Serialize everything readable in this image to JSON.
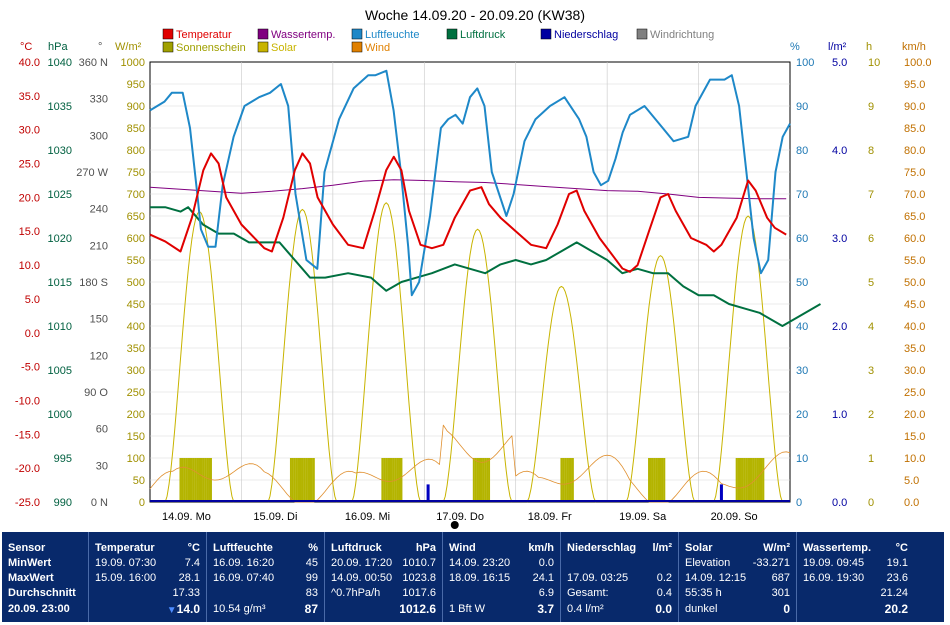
{
  "chart_data": {
    "type": "line",
    "title": "Woche 14.09.20 - 20.09.20 (KW38)",
    "legend": [
      {
        "name": "Temperatur",
        "color": "#e00000"
      },
      {
        "name": "Wassertemp.",
        "color": "#800080"
      },
      {
        "name": "Luftfeuchte",
        "color": "#1e88c8"
      },
      {
        "name": "Luftdruck",
        "color": "#007040"
      },
      {
        "name": "Niederschlag",
        "color": "#0000a0"
      },
      {
        "name": "Windrichtung",
        "color": "#808080"
      },
      {
        "name": "Sonnenschein",
        "color": "#a0a000"
      },
      {
        "name": "Solar",
        "color": "#c8b400"
      },
      {
        "name": "Wind",
        "color": "#e08000"
      }
    ],
    "axes": {
      "temp": {
        "unit": "°C",
        "ticks": [
          "40.0",
          "35.0",
          "30.0",
          "25.0",
          "20.0",
          "15.0",
          "10.0",
          "5.0",
          "0.0",
          "-5.0",
          "-10.0",
          "-15.0",
          "-20.0",
          "-25.0"
        ],
        "color": "#c00000"
      },
      "hpa": {
        "unit": "hPa",
        "ticks": [
          "1040",
          "1035",
          "1030",
          "1025",
          "1020",
          "1015",
          "1010",
          "1005",
          "1000",
          "995",
          "990"
        ],
        "color": "#006040"
      },
      "dir": {
        "unit": "°",
        "ticks": [
          "360 N",
          "330",
          "300",
          "270 W",
          "240",
          "210",
          "180 S",
          "150",
          "120",
          "90 O",
          "60",
          "30",
          "0 N"
        ],
        "color": "#505050"
      },
      "wm2": {
        "unit": "W/m²",
        "ticks": [
          "1000",
          "950",
          "900",
          "850",
          "800",
          "750",
          "700",
          "650",
          "600",
          "550",
          "500",
          "450",
          "400",
          "350",
          "300",
          "250",
          "200",
          "150",
          "100",
          "50",
          "0"
        ],
        "color": "#a09000"
      },
      "pct": {
        "unit": "%",
        "ticks": [
          "100",
          "90",
          "80",
          "70",
          "60",
          "50",
          "40",
          "30",
          "20",
          "10",
          "0"
        ],
        "color": "#1e78b4"
      },
      "lm2": {
        "unit": "l/m²",
        "ticks": [
          "5.0",
          "4.0",
          "3.0",
          "2.0",
          "1.0",
          "0.0"
        ],
        "color": "#0000a0"
      },
      "h": {
        "unit": "h",
        "ticks": [
          "10",
          "9",
          "8",
          "7",
          "6",
          "5",
          "4",
          "3",
          "2",
          "1",
          "0"
        ],
        "color": "#a09000"
      },
      "kmh": {
        "unit": "km/h",
        "ticks": [
          "100.0",
          "95.0",
          "90.0",
          "85.0",
          "80.0",
          "75.0",
          "70.0",
          "65.0",
          "60.0",
          "55.0",
          "50.0",
          "45.0",
          "40.0",
          "35.0",
          "30.0",
          "25.0",
          "20.0",
          "15.0",
          "10.0",
          "5.0",
          "0.0"
        ],
        "color": "#c07000"
      }
    },
    "x_ticks": [
      "14.09.  Mo",
      "15.09.  Di",
      "16.09.  Mi",
      "17.09.  Do",
      "18.09.  Fr",
      "19.09.  Sa",
      "20.09.  So"
    ],
    "series": {
      "temperatur": [
        [
          0,
          14.5
        ],
        [
          4,
          13.5
        ],
        [
          8,
          12.0
        ],
        [
          11,
          17
        ],
        [
          14,
          24
        ],
        [
          16,
          26.5
        ],
        [
          18,
          25
        ],
        [
          20,
          20
        ],
        [
          24,
          16
        ],
        [
          30,
          12.5
        ],
        [
          32,
          12.0
        ],
        [
          35,
          17
        ],
        [
          38,
          24
        ],
        [
          40,
          26.5
        ],
        [
          42,
          25
        ],
        [
          44,
          20
        ],
        [
          48,
          16
        ],
        [
          52,
          13
        ],
        [
          56,
          12.5
        ],
        [
          59,
          18
        ],
        [
          62,
          24
        ],
        [
          64,
          26
        ],
        [
          66,
          24
        ],
        [
          68,
          18
        ],
        [
          71,
          13
        ],
        [
          74,
          12.5
        ],
        [
          77,
          13
        ],
        [
          80,
          17
        ],
        [
          84,
          21
        ],
        [
          87,
          21.5
        ],
        [
          89,
          19
        ],
        [
          92,
          17
        ],
        [
          96,
          15
        ],
        [
          100,
          13
        ],
        [
          104,
          12.5
        ],
        [
          107,
          16
        ],
        [
          110,
          20.5
        ],
        [
          112,
          21
        ],
        [
          114,
          18
        ],
        [
          118,
          14
        ],
        [
          122,
          11
        ],
        [
          124,
          9.5
        ],
        [
          126,
          9
        ],
        [
          128,
          10
        ],
        [
          131,
          15
        ],
        [
          134,
          20
        ],
        [
          136,
          20.5
        ],
        [
          138,
          18
        ],
        [
          142,
          14
        ],
        [
          146,
          13
        ],
        [
          148,
          12
        ],
        [
          150,
          13
        ],
        [
          154,
          17
        ],
        [
          157,
          22.5
        ],
        [
          159,
          21
        ],
        [
          162,
          17
        ],
        [
          164,
          15.5
        ],
        [
          167,
          14.5
        ]
      ],
      "wassertemp": [
        [
          0,
          21.5
        ],
        [
          8,
          21.2
        ],
        [
          16,
          20.9
        ],
        [
          24,
          20.6
        ],
        [
          32,
          20.9
        ],
        [
          40,
          21.3
        ],
        [
          48,
          21.8
        ],
        [
          56,
          22.4
        ],
        [
          64,
          22.6
        ],
        [
          72,
          22.5
        ],
        [
          80,
          22.3
        ],
        [
          88,
          22.2
        ],
        [
          96,
          21.9
        ],
        [
          104,
          21.6
        ],
        [
          112,
          21.3
        ],
        [
          120,
          21.0
        ],
        [
          128,
          20.9
        ],
        [
          136,
          20.5
        ],
        [
          144,
          20.0
        ],
        [
          152,
          19.9
        ],
        [
          160,
          19.8
        ],
        [
          167,
          19.8
        ]
      ],
      "luftfeuchte": [
        [
          0,
          89
        ],
        [
          4,
          91
        ],
        [
          6,
          93
        ],
        [
          9,
          93
        ],
        [
          11,
          85
        ],
        [
          13,
          70
        ],
        [
          14,
          62
        ],
        [
          16,
          58
        ],
        [
          18,
          58
        ],
        [
          20,
          72
        ],
        [
          23,
          83
        ],
        [
          26,
          90
        ],
        [
          30,
          92
        ],
        [
          33,
          93
        ],
        [
          36,
          95
        ],
        [
          38,
          90
        ],
        [
          40,
          70
        ],
        [
          43,
          55
        ],
        [
          46,
          53
        ],
        [
          48,
          75
        ],
        [
          52,
          87
        ],
        [
          56,
          94
        ],
        [
          60,
          97
        ],
        [
          62,
          97
        ],
        [
          65,
          98
        ],
        [
          67,
          89
        ],
        [
          69,
          75
        ],
        [
          71,
          58
        ],
        [
          72,
          47
        ],
        [
          74,
          50
        ],
        [
          77,
          65
        ],
        [
          80,
          85
        ],
        [
          82,
          87
        ],
        [
          84,
          88
        ],
        [
          86,
          86
        ],
        [
          88,
          92
        ],
        [
          90,
          94
        ],
        [
          92,
          90
        ],
        [
          94,
          75
        ],
        [
          96,
          70
        ],
        [
          98,
          65
        ],
        [
          100,
          70
        ],
        [
          103,
          82
        ],
        [
          106,
          87
        ],
        [
          110,
          90
        ],
        [
          114,
          92
        ],
        [
          118,
          87
        ],
        [
          120,
          83
        ],
        [
          122,
          75
        ],
        [
          124,
          72
        ],
        [
          126,
          73
        ],
        [
          128,
          78
        ],
        [
          130,
          84
        ],
        [
          132,
          88
        ],
        [
          136,
          90
        ],
        [
          140,
          86
        ],
        [
          144,
          82
        ],
        [
          148,
          83
        ],
        [
          150,
          90
        ],
        [
          154,
          96
        ],
        [
          158,
          96
        ],
        [
          160,
          97
        ],
        [
          162,
          90
        ],
        [
          164,
          75
        ],
        [
          166,
          60
        ],
        [
          168,
          52
        ],
        [
          170,
          55
        ],
        [
          172,
          75
        ],
        [
          174,
          83
        ],
        [
          176,
          86
        ]
      ],
      "luftdruck": [
        [
          0,
          1023.5
        ],
        [
          4,
          1023.5
        ],
        [
          8,
          1023.0
        ],
        [
          10,
          1023.5
        ],
        [
          14,
          1021.5
        ],
        [
          18,
          1020.5
        ],
        [
          22,
          1020.5
        ],
        [
          26,
          1019.5
        ],
        [
          30,
          1019.5
        ],
        [
          34,
          1019.5
        ],
        [
          36,
          1018.5
        ],
        [
          40,
          1016.5
        ],
        [
          42,
          1015.5
        ],
        [
          46,
          1015.5
        ],
        [
          52,
          1016.0
        ],
        [
          58,
          1015.5
        ],
        [
          62,
          1014.0
        ],
        [
          66,
          1015.0
        ],
        [
          70,
          1015.5
        ],
        [
          74,
          1016.0
        ],
        [
          80,
          1017.0
        ],
        [
          84,
          1016.5
        ],
        [
          88,
          1016.0
        ],
        [
          92,
          1017.0
        ],
        [
          96,
          1017.5
        ],
        [
          100,
          1017.0
        ],
        [
          104,
          1017.5
        ],
        [
          108,
          1018.5
        ],
        [
          112,
          1019.5
        ],
        [
          116,
          1018.5
        ],
        [
          120,
          1017.5
        ],
        [
          124,
          1016.0
        ],
        [
          128,
          1016.5
        ],
        [
          132,
          1016.0
        ],
        [
          136,
          1016.0
        ],
        [
          140,
          1014.5
        ],
        [
          144,
          1013.5
        ],
        [
          148,
          1013.5
        ],
        [
          152,
          1012.5
        ],
        [
          156,
          1012.0
        ],
        [
          160,
          1011.5
        ],
        [
          164,
          1010.5
        ],
        [
          166,
          1010.0
        ],
        [
          170,
          1011.0
        ],
        [
          176,
          1012.5
        ]
      ],
      "solar_peaks": [
        [
          13,
          660
        ],
        [
          40,
          665
        ],
        [
          62,
          680
        ],
        [
          86,
          620
        ],
        [
          108,
          490
        ],
        [
          134,
          560
        ],
        [
          157,
          650
        ]
      ],
      "sun_days": [
        [
          8,
          16
        ],
        [
          37,
          43
        ],
        [
          61,
          66
        ],
        [
          85,
          89
        ],
        [
          108,
          111
        ],
        [
          131,
          135
        ],
        [
          154,
          161
        ]
      ],
      "rain": [
        [
          73,
          0.2
        ],
        [
          150,
          0.2
        ]
      ]
    }
  },
  "panel": {
    "sensor": {
      "header": "Sensor",
      "rows": [
        "MinWert",
        "MaxWert",
        "Durchschnitt",
        "20.09. 23:00"
      ]
    },
    "temperatur": {
      "header": "Temperatur",
      "unit": "°C",
      "min": {
        "time": "19.09.  07:30",
        "value": "7.4"
      },
      "max": {
        "time": "15.09.  16:00",
        "value": "28.1"
      },
      "avg": "17.33",
      "now": "14.0"
    },
    "luftfeuchte": {
      "header": "Luftfeuchte",
      "unit": "%",
      "min": {
        "time": "16.09.  16:20",
        "value": "45"
      },
      "max": {
        "time": "16.09.  07:40",
        "value": "99"
      },
      "avg": "83",
      "abs": "10.54 g/m³",
      "now": "87"
    },
    "luftdruck": {
      "header": "Luftdruck",
      "unit": "hPa",
      "min": {
        "time": "20.09.  17:20",
        "value": "1010.7"
      },
      "max": {
        "time": "14.09.  00:50",
        "value": "1023.8"
      },
      "trend": "^0.7hPa/h",
      "avg": "1017.6",
      "now": "1012.6"
    },
    "wind": {
      "header": "Wind",
      "unit": "km/h",
      "min": {
        "time": "14.09.  23:20",
        "value": "0.0"
      },
      "max": {
        "time": "18.09.  16:15",
        "value": "24.1"
      },
      "avg": "6.9",
      "bft": "1 Bft W",
      "now": "3.7"
    },
    "niederschlag": {
      "header": "Niederschlag",
      "unit": "l/m²",
      "max": {
        "time": "17.09.  03:25",
        "value": "0.2"
      },
      "total_label": "Gesamt:",
      "total": "0.4",
      "last_label": "0.4 l/m²",
      "now": "0.0"
    },
    "solar": {
      "header": "Solar",
      "unit": "W/m²",
      "elev_label": "Elevation",
      "elev": "-33.271",
      "max": {
        "time": "14.09.  12:15",
        "value": "687"
      },
      "dur": "55:35 h",
      "avg": "301",
      "state": "dunkel",
      "now": "0"
    },
    "wassertemp": {
      "header": "Wassertemp.",
      "unit": "°C",
      "min": {
        "time": "19.09.  09:45",
        "value": "19.1"
      },
      "max": {
        "time": "16.09.  19:30",
        "value": "23.6"
      },
      "avg": "21.24",
      "now": "20.2"
    }
  }
}
